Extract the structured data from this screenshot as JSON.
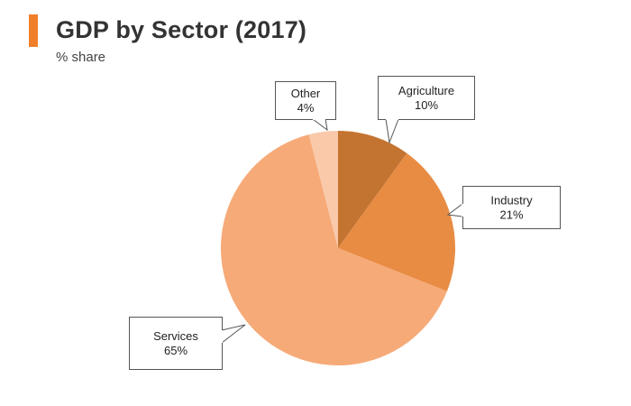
{
  "header": {
    "title": "GDP by Sector (2017)",
    "subtitle": "% share"
  },
  "chart_data": {
    "type": "pie",
    "title": "GDP by Sector (2017)",
    "subtitle": "% share",
    "unit": "%",
    "slices": [
      {
        "label": "Agriculture",
        "value": 10,
        "display": "10%",
        "color": "#c47431"
      },
      {
        "label": "Industry",
        "value": 21,
        "display": "21%",
        "color": "#e88c44"
      },
      {
        "label": "Services",
        "value": 65,
        "display": "65%",
        "color": "#f6aa78"
      },
      {
        "label": "Other",
        "value": 4,
        "display": "4%",
        "color": "#f9c9aa"
      }
    ]
  }
}
